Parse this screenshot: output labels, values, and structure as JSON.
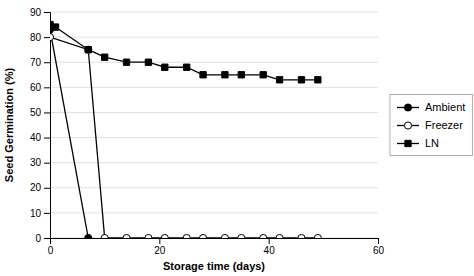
{
  "chart_data": {
    "type": "line",
    "xlabel": "Storage time (days)",
    "ylabel": "Seed Germination (%)",
    "xlim": [
      0,
      60
    ],
    "ylim": [
      0,
      90
    ],
    "xticks": [
      0,
      20,
      40,
      60
    ],
    "yticks": [
      0,
      10,
      20,
      30,
      40,
      50,
      60,
      70,
      80,
      90
    ],
    "grid": true,
    "legend": "right",
    "series": [
      {
        "name": "Ambient",
        "color": "#000000",
        "marker": "filled-circle",
        "x": [
          0,
          7
        ],
        "values": [
          83,
          0
        ]
      },
      {
        "name": "Freezer",
        "color": "#000000",
        "marker": "open-circle",
        "x": [
          0,
          7,
          10,
          14,
          18,
          21,
          25,
          28,
          32,
          35,
          39,
          42,
          46,
          49
        ],
        "values": [
          80,
          75,
          0,
          0,
          0,
          0,
          0,
          0,
          0,
          0,
          0,
          0,
          0,
          0
        ]
      },
      {
        "name": "LN",
        "color": "#000000",
        "marker": "filled-square",
        "x": [
          0,
          1,
          7,
          10,
          14,
          18,
          21,
          25,
          28,
          32,
          35,
          39,
          42,
          46,
          49
        ],
        "values": [
          85,
          84,
          75,
          72,
          70,
          70,
          68,
          68,
          65,
          65,
          65,
          65,
          63,
          63,
          63
        ]
      }
    ]
  }
}
